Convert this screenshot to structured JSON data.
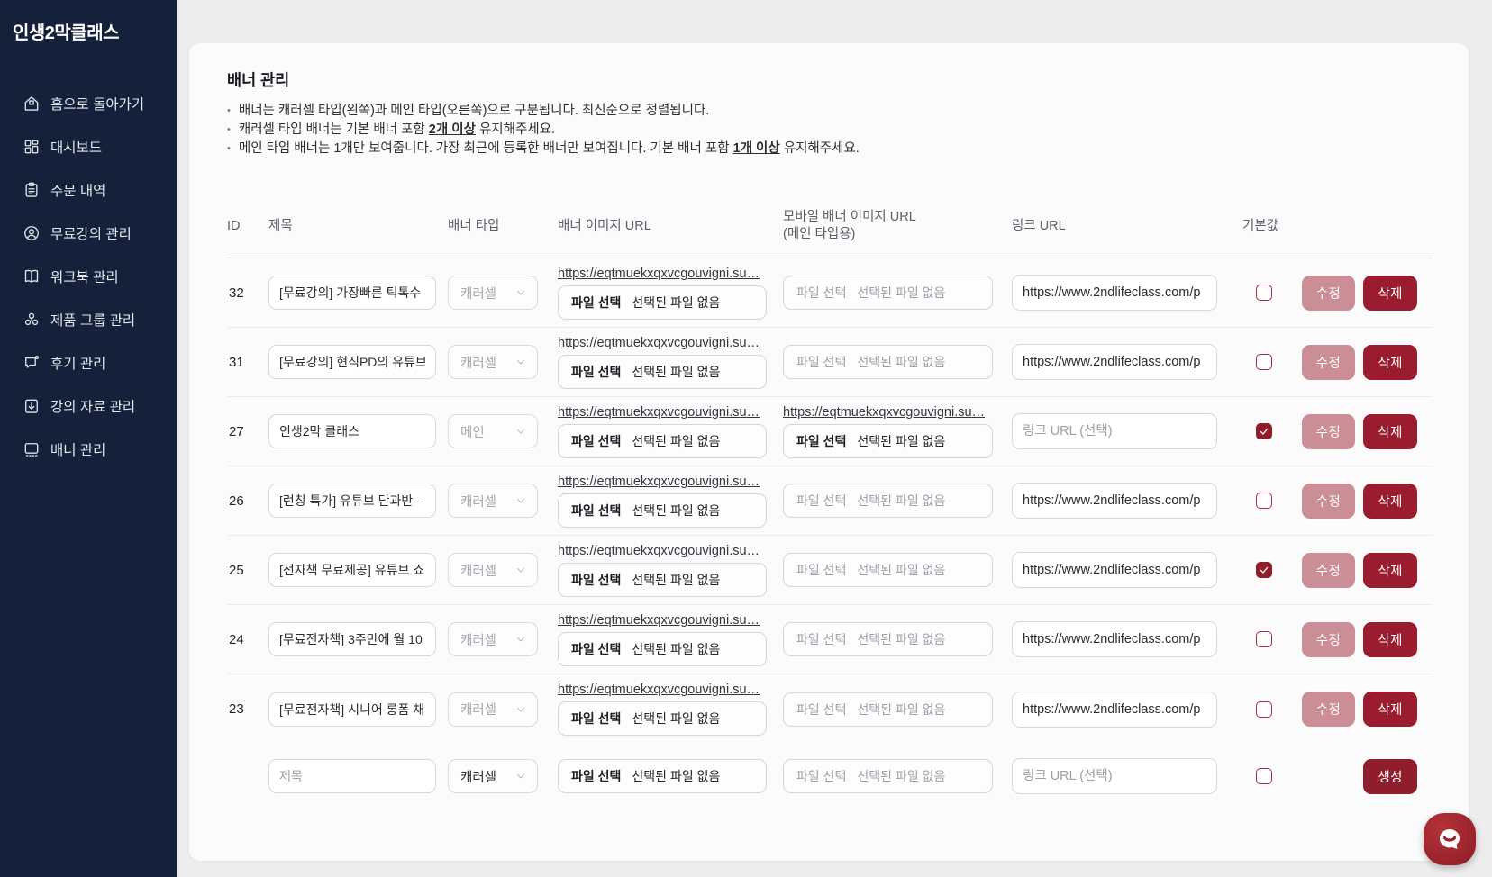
{
  "sidebar": {
    "brand": "인생2막클래스",
    "items": [
      {
        "label": "홈으로 돌아가기",
        "icon": "home-icon"
      },
      {
        "label": "대시보드",
        "icon": "dashboard-icon"
      },
      {
        "label": "주문 내역",
        "icon": "orders-icon"
      },
      {
        "label": "무료강의 관리",
        "icon": "free-lecture-icon"
      },
      {
        "label": "워크북 관리",
        "icon": "workbook-icon"
      },
      {
        "label": "제품 그룹 관리",
        "icon": "product-group-icon"
      },
      {
        "label": "후기 관리",
        "icon": "review-icon"
      },
      {
        "label": "강의 자료 관리",
        "icon": "lecture-material-icon"
      },
      {
        "label": "배너 관리",
        "icon": "banner-icon"
      }
    ]
  },
  "page": {
    "title": "배너 관리",
    "notes": [
      {
        "pre": "배너는 캐러셀 타입(왼쪽)과 메인 타입(오른쪽)으로 구분됩니다. 최신순으로 정렬됩니다.",
        "strong": "",
        "post": ""
      },
      {
        "pre": "캐러셀 타입 배너는 기본 배너 포함 ",
        "strong": "2개 이상",
        "post": " 유지해주세요."
      },
      {
        "pre": "메인 타입 배너는 1개만 보여줍니다. 가장 최근에 등록한 배너만 보여집니다. 기본 배너 포함 ",
        "strong": "1개 이상",
        "post": " 유지해주세요."
      }
    ]
  },
  "table": {
    "headers": {
      "id": "ID",
      "title": "제목",
      "type": "배너 타입",
      "banner_url": "배너 이미지 URL",
      "mobile_url_line1": "모바일 배너 이미지 URL",
      "mobile_url_line2": "(메인 타입용)",
      "link_url": "링크 URL",
      "default": "기본값"
    },
    "image_link_text": "https://eqtmuekxqxvcgouvigni.su…",
    "file_button_label": "파일 선택",
    "file_empty_label": "선택된 파일 없음",
    "title_placeholder": "제목",
    "link_placeholder": "링크 URL (선택)",
    "edit_label": "수정",
    "delete_label": "삭제",
    "create_label": "생성",
    "create_row_type": "캐러셀",
    "rows": [
      {
        "id": "32",
        "title": "[무료강의] 가장빠른 틱톡수",
        "type": "캐러셀",
        "mobile_link": false,
        "link_url": "https://www.2ndlifeclass.com/p",
        "default": false
      },
      {
        "id": "31",
        "title": "[무료강의] 현직PD의 유튜브",
        "type": "캐러셀",
        "mobile_link": false,
        "link_url": "https://www.2ndlifeclass.com/p",
        "default": false
      },
      {
        "id": "27",
        "title": "인생2막 클래스",
        "type": "메인",
        "mobile_link": true,
        "link_url": "",
        "default": true
      },
      {
        "id": "26",
        "title": "[런칭 특가] 유튜브 단과반 -",
        "type": "캐러셀",
        "mobile_link": false,
        "link_url": "https://www.2ndlifeclass.com/p",
        "default": false
      },
      {
        "id": "25",
        "title": "[전자책 무료제공] 유튜브 쇼",
        "type": "캐러셀",
        "mobile_link": false,
        "link_url": "https://www.2ndlifeclass.com/p",
        "default": true
      },
      {
        "id": "24",
        "title": "[무료전자책] 3주만에 월 10",
        "type": "캐러셀",
        "mobile_link": false,
        "link_url": "https://www.2ndlifeclass.com/p",
        "default": false
      },
      {
        "id": "23",
        "title": "[무료전자책] 시니어 롱폼 채",
        "type": "캐러셀",
        "mobile_link": false,
        "link_url": "https://www.2ndlifeclass.com/p",
        "default": false
      }
    ]
  },
  "colors": {
    "sidebar_bg": "#15213a",
    "page_bg": "#ededee",
    "card_bg": "#fbfbfb",
    "accent_dark_red": "#9b1c2e",
    "accent_pink": "#cb8e96",
    "checkbox_checked": "#8f1e2d",
    "chat_widget_red": "#a32c31"
  },
  "chat_widget": {
    "name": "channel-chat-launcher"
  }
}
